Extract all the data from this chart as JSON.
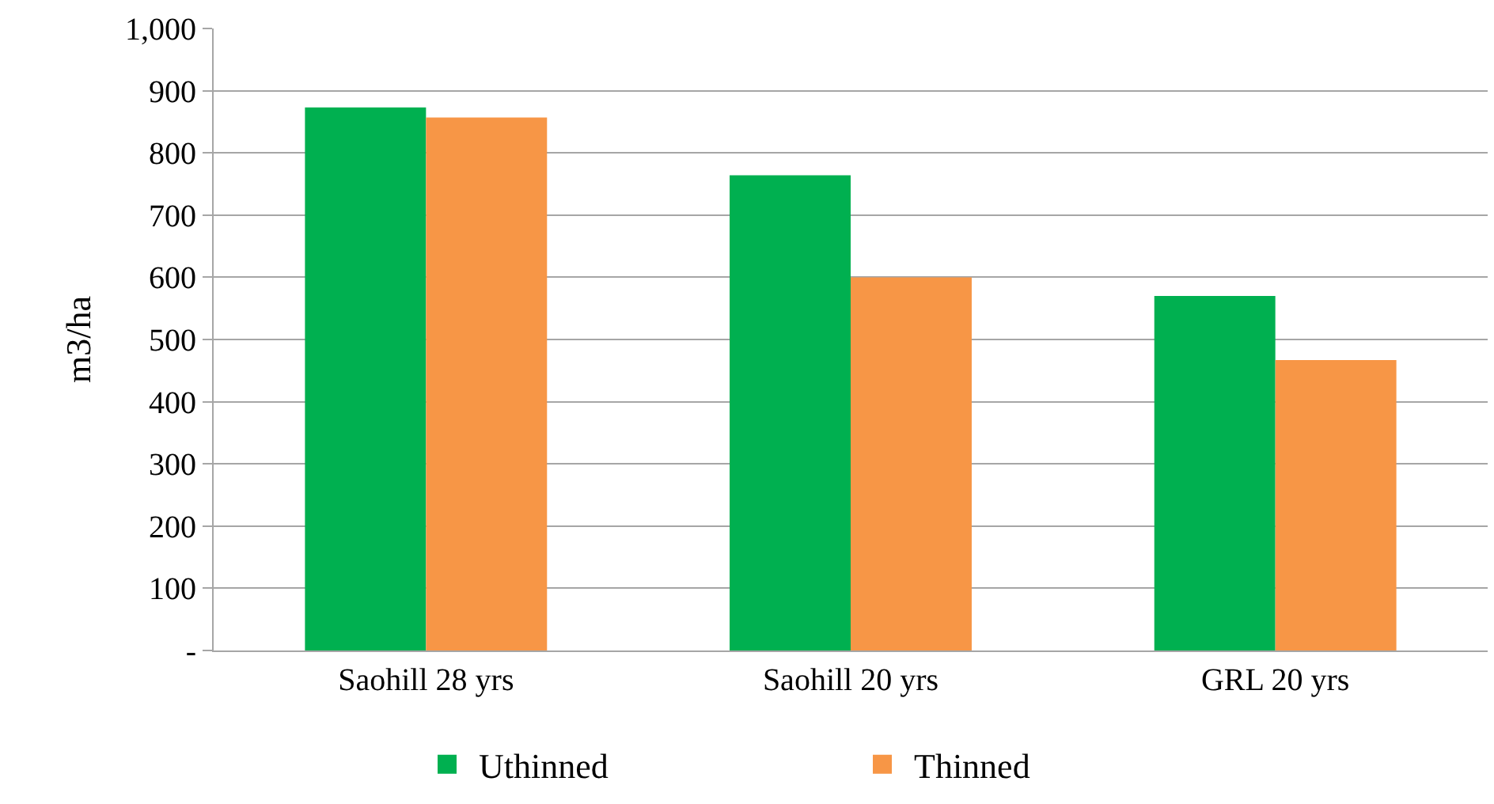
{
  "chart_data": {
    "type": "bar",
    "ylabel": "m3/ha",
    "categories": [
      "Saohill 28 yrs",
      "Saohill 20 yrs",
      "GRL 20 yrs"
    ],
    "series": [
      {
        "name": "Uthinned",
        "color": "#00b050",
        "values": [
          873,
          764,
          570
        ]
      },
      {
        "name": "Thinned",
        "color": "#f79646",
        "values": [
          857,
          600,
          467
        ]
      }
    ],
    "ylim": [
      0,
      1000
    ],
    "yticks": [
      {
        "value": 0,
        "label": "-"
      },
      100,
      200,
      300,
      400,
      500,
      600,
      700,
      800,
      900,
      {
        "value": 1000,
        "label": "1,000"
      }
    ],
    "grid": "y",
    "legend": "bottom"
  }
}
